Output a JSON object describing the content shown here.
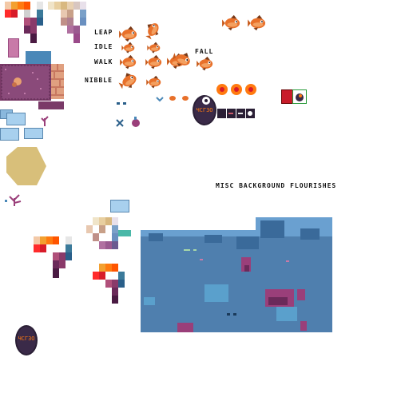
{
  "labels": {
    "leap": "LEAP",
    "idle": "IDLE",
    "walk": "WALK",
    "nibble": "NIBBLE",
    "fall": "FALL",
    "misc": "MISC BACKGROUND FLOURISHES"
  },
  "egg_glyphs": "ЧСГЗО",
  "colors": {
    "background": "#ffffff",
    "water": "#4f7fae",
    "water_light": "#6aa0d0",
    "coral_pink": "#9a3f7a",
    "coral_dark": "#6b2a5a",
    "fish_orange": "#e8702a",
    "fish_dark": "#7a3a18",
    "sand": "#d8bf7a",
    "egg_dark": "#2a1f35",
    "rug": "#7a3a68"
  }
}
